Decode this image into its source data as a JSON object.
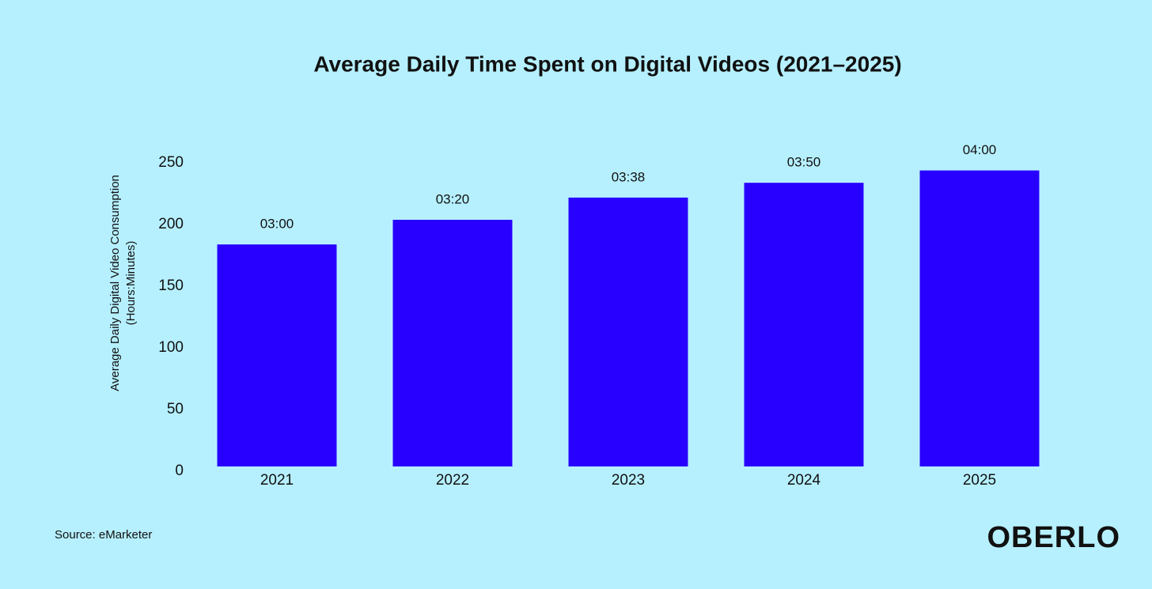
{
  "chart_data": {
    "type": "bar",
    "title": "Average Daily Time Spent on Digital Videos (2021–2025)",
    "y_label": [
      "Average Daily Digital Video Consumption",
      "(Hours:Minutes)"
    ],
    "categories": [
      "2021",
      "2022",
      "2023",
      "2024",
      "2025"
    ],
    "values": [
      180,
      200,
      218,
      230,
      240
    ],
    "value_labels": [
      "03:00",
      "03:20",
      "03:38",
      "03:50",
      "04:00"
    ],
    "color": "#2800ff",
    "ylim": [
      0,
      250
    ],
    "yticks": [
      0,
      50,
      100,
      150,
      200,
      250
    ],
    "grid": false,
    "source": "Source: eMarketer",
    "brand": "OBERLO"
  }
}
